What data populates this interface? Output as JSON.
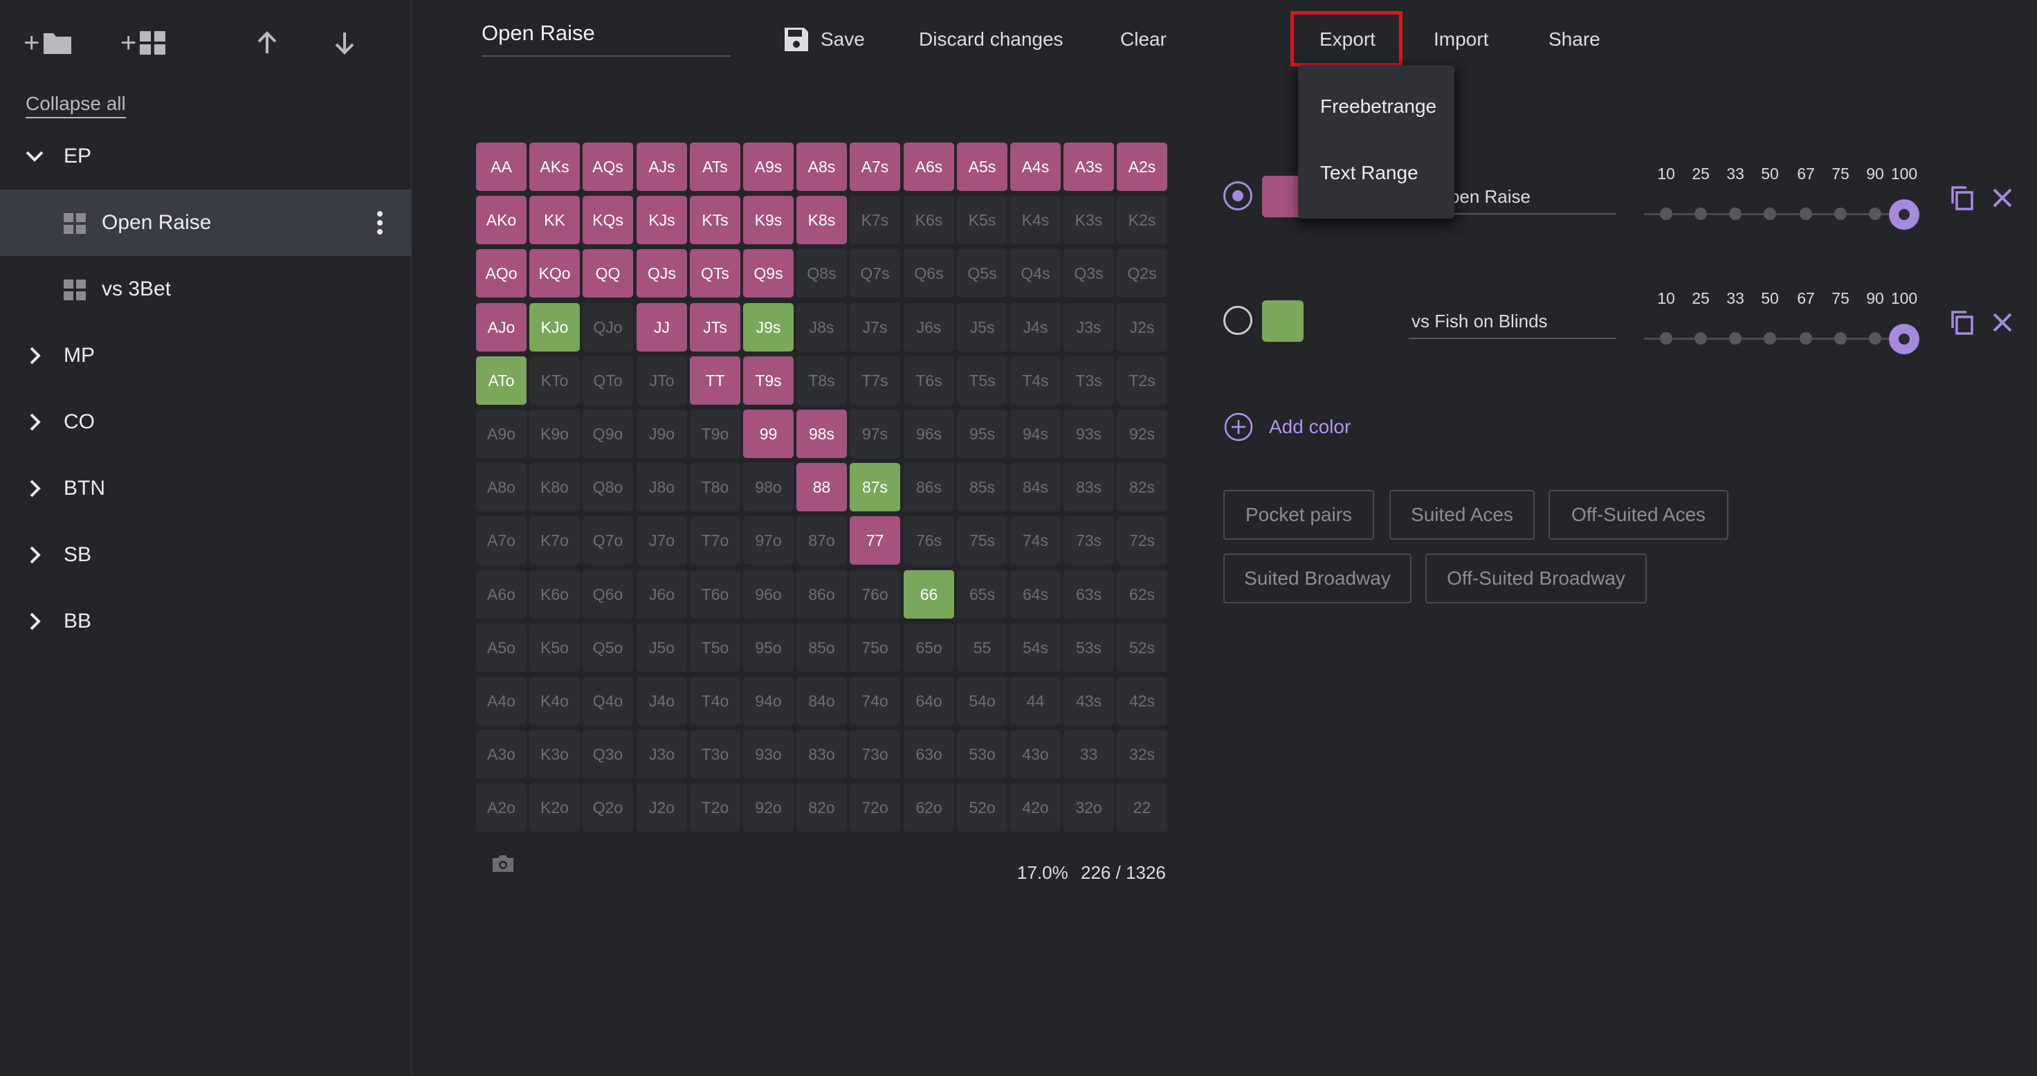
{
  "sidebar": {
    "collapse_all": "Collapse all",
    "folders": [
      {
        "label": "EP",
        "expanded": true
      },
      {
        "label": "MP",
        "expanded": false
      },
      {
        "label": "CO",
        "expanded": false
      },
      {
        "label": "BTN",
        "expanded": false
      },
      {
        "label": "SB",
        "expanded": false
      },
      {
        "label": "BB",
        "expanded": false
      }
    ],
    "ranges": [
      {
        "label": "Open Raise",
        "active": true
      },
      {
        "label": "vs 3Bet",
        "active": false
      }
    ]
  },
  "header": {
    "range_name": "Open Raise",
    "save": "Save",
    "discard": "Discard changes",
    "clear": "Clear",
    "export": "Export",
    "import": "Import",
    "share": "Share"
  },
  "export_menu": [
    "Freebetrange",
    "Text Range"
  ],
  "grid": {
    "rows": [
      [
        "AA",
        "AKs",
        "AQs",
        "AJs",
        "ATs",
        "A9s",
        "A8s",
        "A7s",
        "A6s",
        "A5s",
        "A4s",
        "A3s",
        "A2s"
      ],
      [
        "AKo",
        "KK",
        "KQs",
        "KJs",
        "KTs",
        "K9s",
        "K8s",
        "K7s",
        "K6s",
        "K5s",
        "K4s",
        "K3s",
        "K2s"
      ],
      [
        "AQo",
        "KQo",
        "QQ",
        "QJs",
        "QTs",
        "Q9s",
        "Q8s",
        "Q7s",
        "Q6s",
        "Q5s",
        "Q4s",
        "Q3s",
        "Q2s"
      ],
      [
        "AJo",
        "KJo",
        "QJo",
        "JJ",
        "JTs",
        "J9s",
        "J8s",
        "J7s",
        "J6s",
        "J5s",
        "J4s",
        "J3s",
        "J2s"
      ],
      [
        "ATo",
        "KTo",
        "QTo",
        "JTo",
        "TT",
        "T9s",
        "T8s",
        "T7s",
        "T6s",
        "T5s",
        "T4s",
        "T3s",
        "T2s"
      ],
      [
        "A9o",
        "K9o",
        "Q9o",
        "J9o",
        "T9o",
        "99",
        "98s",
        "97s",
        "96s",
        "95s",
        "94s",
        "93s",
        "92s"
      ],
      [
        "A8o",
        "K8o",
        "Q8o",
        "J8o",
        "T8o",
        "98o",
        "88",
        "87s",
        "86s",
        "85s",
        "84s",
        "83s",
        "82s"
      ],
      [
        "A7o",
        "K7o",
        "Q7o",
        "J7o",
        "T7o",
        "97o",
        "87o",
        "77",
        "76s",
        "75s",
        "74s",
        "73s",
        "72s"
      ],
      [
        "A6o",
        "K6o",
        "Q6o",
        "J6o",
        "T6o",
        "96o",
        "86o",
        "76o",
        "66",
        "65s",
        "64s",
        "63s",
        "62s"
      ],
      [
        "A5o",
        "K5o",
        "Q5o",
        "J5o",
        "T5o",
        "95o",
        "85o",
        "75o",
        "65o",
        "55",
        "54s",
        "53s",
        "52s"
      ],
      [
        "A4o",
        "K4o",
        "Q4o",
        "J4o",
        "T4o",
        "94o",
        "84o",
        "74o",
        "64o",
        "54o",
        "44",
        "43s",
        "42s"
      ],
      [
        "A3o",
        "K3o",
        "Q3o",
        "J3o",
        "T3o",
        "93o",
        "83o",
        "73o",
        "63o",
        "53o",
        "43o",
        "33",
        "32s"
      ],
      [
        "A2o",
        "K2o",
        "Q2o",
        "J2o",
        "T2o",
        "92o",
        "82o",
        "72o",
        "62o",
        "52o",
        "42o",
        "32o",
        "22"
      ]
    ],
    "purple_hands": [
      "AA",
      "AKs",
      "AQs",
      "AJs",
      "ATs",
      "A9s",
      "A8s",
      "A7s",
      "A6s",
      "A5s",
      "A4s",
      "A3s",
      "A2s",
      "AKo",
      "KK",
      "KQs",
      "KJs",
      "KTs",
      "K9s",
      "K8s",
      "AQo",
      "KQo",
      "QQ",
      "QJs",
      "QTs",
      "Q9s",
      "AJo",
      "JJ",
      "JTs",
      "TT",
      "T9s",
      "99",
      "98s",
      "88",
      "77"
    ],
    "green_hands": [
      "KJo",
      "J9s",
      "ATo",
      "87s",
      "66"
    ]
  },
  "stats": {
    "percent": "17.0%",
    "combos": "226 / 1326"
  },
  "colors": [
    {
      "name": "ult Open Raise",
      "swatch": "#a5527e",
      "selected": true,
      "weight": 100
    },
    {
      "name": "vs Fish on Blinds",
      "swatch": "#7aa75a",
      "selected": false,
      "weight": 100
    }
  ],
  "weight_ticks": [
    "10",
    "25",
    "33",
    "50",
    "67",
    "75",
    "90",
    "100"
  ],
  "add_color": "Add color",
  "presets": [
    "Pocket pairs",
    "Suited Aces",
    "Off-Suited Aces",
    "Suited Broadway",
    "Off-Suited Broadway"
  ],
  "theme": {
    "purple": "#a5527e",
    "green": "#7aa75a",
    "accent": "#a58be0",
    "highlight": "#e0141c"
  }
}
